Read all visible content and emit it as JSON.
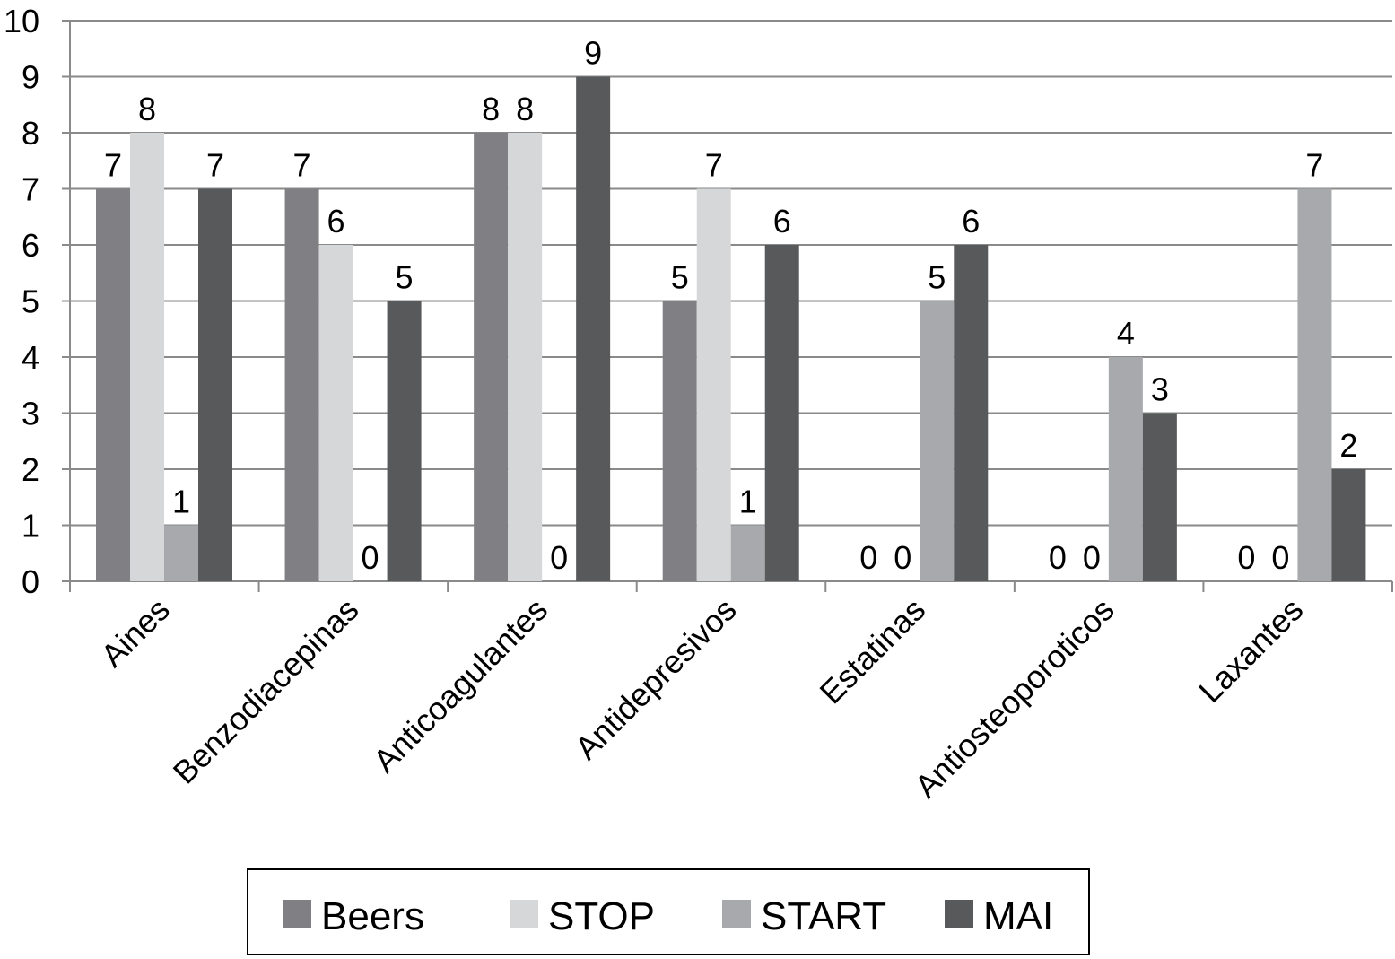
{
  "chart_data": {
    "type": "bar",
    "categories": [
      "Aines",
      "Benzodiacepinas",
      "Anticoagulantes",
      "Antidepresivos",
      "Estatinas",
      "Antiosteoporoticos",
      "Laxantes"
    ],
    "series": [
      {
        "name": "Beers",
        "values": [
          7,
          7,
          8,
          5,
          0,
          0,
          0
        ],
        "color": "#808084"
      },
      {
        "name": "STOP",
        "values": [
          8,
          6,
          8,
          7,
          0,
          0,
          0
        ],
        "color": "#d6d7d8"
      },
      {
        "name": "START",
        "values": [
          1,
          0,
          0,
          1,
          5,
          4,
          7
        ],
        "color": "#a8a9ac"
      },
      {
        "name": "MAI",
        "values": [
          7,
          5,
          9,
          6,
          6,
          3,
          2
        ],
        "color": "#58595b"
      }
    ],
    "ylim": [
      0,
      10
    ],
    "yticks": [
      0,
      1,
      2,
      3,
      4,
      5,
      6,
      7,
      8,
      9,
      10
    ],
    "grid": true,
    "legend_position": "bottom",
    "data_labels": true
  }
}
